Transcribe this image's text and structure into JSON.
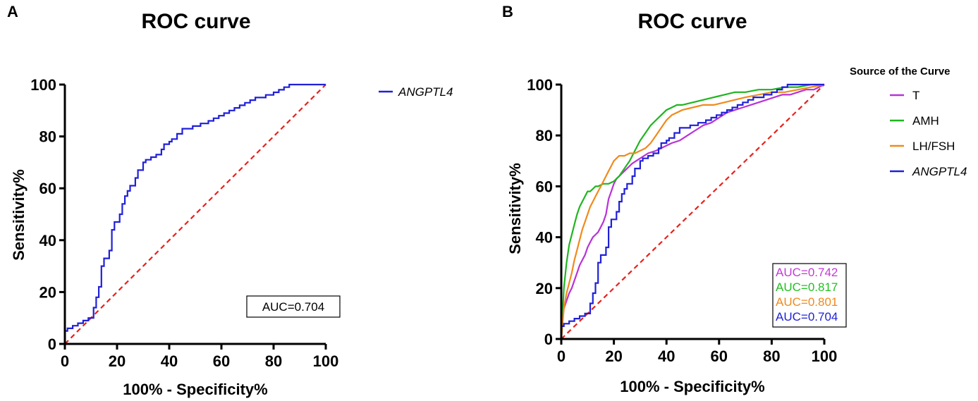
{
  "panel_labels": [
    "A",
    "B"
  ],
  "chart_data": [
    {
      "type": "line",
      "title": "ROC curve",
      "xlabel": "100% - Specificity%",
      "ylabel": "Sensitivity%",
      "xlim": [
        0,
        100
      ],
      "ylim": [
        0,
        100
      ],
      "xticks": [
        "0",
        "20",
        "40",
        "60",
        "80",
        "100"
      ],
      "yticks": [
        "0",
        "20",
        "40",
        "60",
        "80",
        "100"
      ],
      "reference_line": {
        "x": [
          0,
          100
        ],
        "y": [
          0,
          100
        ],
        "color": "#e8211c",
        "style": "dashed"
      },
      "series": [
        {
          "name": "ANGPTL4",
          "color": "#2020d8",
          "italic": true,
          "x": [
            0,
            0,
            1,
            1,
            3,
            3,
            5,
            5,
            7,
            7,
            9,
            9,
            11,
            11,
            12,
            12,
            13,
            13,
            14,
            14,
            15,
            15,
            17,
            17,
            18,
            18,
            19,
            19,
            21,
            21,
            22,
            22,
            23,
            23,
            24,
            24,
            25,
            25,
            27,
            27,
            28,
            28,
            30,
            30,
            31,
            31,
            32,
            32,
            33,
            33,
            35,
            35,
            37,
            37,
            38,
            38,
            40,
            40,
            41,
            41,
            43,
            43,
            45,
            45,
            47,
            47,
            49,
            49,
            52,
            52,
            55,
            55,
            57,
            57,
            59,
            59,
            61,
            61,
            63,
            63,
            65,
            65,
            67,
            67,
            69,
            69,
            71,
            71,
            73,
            73,
            75,
            75,
            77,
            77,
            80,
            80,
            82,
            82,
            84,
            84,
            86,
            86,
            88,
            88,
            90,
            90,
            100
          ],
          "y": [
            0,
            5,
            5,
            6,
            6,
            7,
            7,
            8,
            8,
            9,
            9,
            10,
            10,
            14,
            14,
            18,
            18,
            22,
            22,
            30,
            30,
            33,
            33,
            36,
            36,
            44,
            44,
            47,
            47,
            50,
            50,
            54,
            54,
            57,
            57,
            59,
            59,
            61,
            61,
            64,
            64,
            67,
            67,
            70,
            70,
            71,
            71,
            71,
            71,
            72,
            72,
            73,
            73,
            75,
            75,
            77,
            77,
            78,
            78,
            79,
            79,
            81,
            81,
            83,
            83,
            83,
            83,
            84,
            84,
            85,
            85,
            86,
            86,
            87,
            87,
            88,
            88,
            89,
            89,
            90,
            90,
            91,
            91,
            92,
            92,
            93,
            93,
            94,
            94,
            95,
            95,
            95,
            95,
            96,
            96,
            97,
            97,
            98,
            98,
            99,
            99,
            100,
            100,
            100,
            100,
            100,
            100
          ]
        }
      ],
      "annotations": [
        {
          "text": "AUC=0.704",
          "color": "#000000",
          "boxed": true
        }
      ],
      "legend": {
        "title": "",
        "position": "right"
      }
    },
    {
      "type": "line",
      "title": "ROC curve",
      "xlabel": "100% - Specificity%",
      "ylabel": "Sensitivity%",
      "xlim": [
        0,
        100
      ],
      "ylim": [
        0,
        100
      ],
      "xticks": [
        "0",
        "20",
        "40",
        "60",
        "80",
        "100"
      ],
      "yticks": [
        "0",
        "20",
        "40",
        "60",
        "80",
        "100"
      ],
      "reference_line": {
        "x": [
          0,
          100
        ],
        "y": [
          0,
          100
        ],
        "color": "#e8211c",
        "style": "dashed"
      },
      "series": [
        {
          "name": "T",
          "color": "#b832d8",
          "italic": false,
          "x": [
            0,
            0.5,
            1,
            2,
            3,
            4,
            5,
            6,
            7,
            8,
            9,
            10,
            11,
            12,
            13,
            14,
            15,
            16,
            17,
            18,
            19,
            20,
            21,
            22,
            23,
            25,
            27,
            30,
            33,
            36,
            38,
            40,
            42,
            45,
            48,
            51,
            54,
            57,
            60,
            63,
            66,
            69,
            72,
            75,
            78,
            81,
            84,
            87,
            90,
            93,
            96,
            98,
            100
          ],
          "y": [
            0,
            8,
            12,
            15,
            18,
            20,
            23,
            26,
            29,
            31,
            33,
            36,
            38,
            40,
            41,
            42,
            44,
            46,
            49,
            55,
            58,
            61,
            63,
            64,
            65,
            67,
            69,
            71,
            73,
            74,
            75,
            76,
            77,
            78,
            80,
            82,
            84,
            85,
            87,
            89,
            90,
            91,
            92,
            93,
            94,
            95,
            96,
            96,
            97,
            98,
            98,
            99,
            100
          ]
        },
        {
          "name": "AMH",
          "color": "#1fb51f",
          "italic": false,
          "x": [
            0,
            0.5,
            1,
            2,
            3,
            4,
            5,
            6,
            7,
            8,
            9,
            10,
            11,
            12,
            13,
            14,
            16,
            18,
            20,
            22,
            24,
            26,
            28,
            30,
            32,
            34,
            36,
            38,
            40,
            42,
            44,
            46,
            50,
            54,
            58,
            62,
            66,
            70,
            75,
            80,
            85,
            90,
            95,
            100
          ],
          "y": [
            0,
            10,
            20,
            30,
            37,
            41,
            45,
            49,
            52,
            54,
            56,
            58,
            58,
            59,
            60,
            60,
            61,
            61,
            62,
            64,
            67,
            70,
            74,
            78,
            81,
            84,
            86,
            88,
            90,
            91,
            92,
            92,
            93,
            94,
            95,
            96,
            97,
            97,
            98,
            98,
            99,
            99,
            100,
            100
          ]
        },
        {
          "name": "LH/FSH",
          "color": "#f08a1c",
          "italic": false,
          "x": [
            0,
            0.5,
            1,
            2,
            3,
            4,
            5,
            6,
            7,
            8,
            9,
            10,
            11,
            12,
            13,
            14,
            15,
            16,
            17,
            18,
            19,
            20,
            21,
            22,
            23,
            24,
            26,
            28,
            30,
            32,
            34,
            36,
            38,
            40,
            42,
            44,
            46,
            50,
            54,
            58,
            62,
            66,
            70,
            75,
            80,
            85,
            90,
            95,
            100
          ],
          "y": [
            0,
            6,
            12,
            18,
            22,
            26,
            31,
            35,
            39,
            43,
            46,
            49,
            52,
            54,
            56,
            58,
            60,
            62,
            64,
            66,
            68,
            70,
            71,
            72,
            72,
            72,
            73,
            73,
            74,
            75,
            77,
            80,
            83,
            86,
            88,
            89,
            90,
            91,
            92,
            92,
            93,
            94,
            95,
            96,
            97,
            97,
            98,
            99,
            100
          ]
        },
        {
          "name": "ANGPTL4",
          "color": "#2020d8",
          "italic": true,
          "x": [
            0,
            0,
            1,
            1,
            3,
            3,
            5,
            5,
            7,
            7,
            9,
            9,
            11,
            11,
            12,
            12,
            13,
            13,
            14,
            14,
            15,
            15,
            17,
            17,
            18,
            18,
            19,
            19,
            21,
            21,
            22,
            22,
            23,
            23,
            24,
            24,
            25,
            25,
            27,
            27,
            28,
            28,
            30,
            30,
            31,
            31,
            32,
            32,
            33,
            33,
            35,
            35,
            37,
            37,
            38,
            38,
            40,
            40,
            41,
            41,
            43,
            43,
            45,
            45,
            47,
            47,
            49,
            49,
            52,
            52,
            55,
            55,
            57,
            57,
            59,
            59,
            61,
            61,
            63,
            63,
            65,
            65,
            67,
            67,
            69,
            69,
            71,
            71,
            73,
            73,
            75,
            75,
            77,
            77,
            80,
            80,
            82,
            82,
            84,
            84,
            86,
            86,
            88,
            88,
            90,
            90,
            100
          ],
          "y": [
            0,
            5,
            5,
            6,
            6,
            7,
            7,
            8,
            8,
            9,
            9,
            10,
            10,
            14,
            14,
            18,
            18,
            22,
            22,
            30,
            30,
            33,
            33,
            36,
            36,
            44,
            44,
            47,
            47,
            50,
            50,
            54,
            54,
            57,
            57,
            59,
            59,
            61,
            61,
            64,
            64,
            67,
            67,
            70,
            70,
            71,
            71,
            71,
            71,
            72,
            72,
            73,
            73,
            75,
            75,
            77,
            77,
            78,
            78,
            79,
            79,
            81,
            81,
            83,
            83,
            83,
            83,
            84,
            84,
            85,
            85,
            86,
            86,
            87,
            87,
            88,
            88,
            89,
            89,
            90,
            90,
            91,
            91,
            92,
            92,
            93,
            93,
            94,
            94,
            95,
            95,
            95,
            95,
            96,
            96,
            97,
            97,
            98,
            98,
            99,
            99,
            100,
            100,
            100,
            100,
            100,
            100
          ]
        }
      ],
      "annotations": [
        {
          "text": "AUC=0.742",
          "color": "#c23ad8",
          "boxed": false
        },
        {
          "text": "AUC=0.817",
          "color": "#22c022",
          "boxed": false
        },
        {
          "text": "AUC=0.801",
          "color": "#f08a1c",
          "boxed": false
        },
        {
          "text": "AUC=0.704",
          "color": "#2020d8",
          "boxed": false
        }
      ],
      "legend": {
        "title": "Source of the Curve",
        "position": "right"
      }
    }
  ]
}
